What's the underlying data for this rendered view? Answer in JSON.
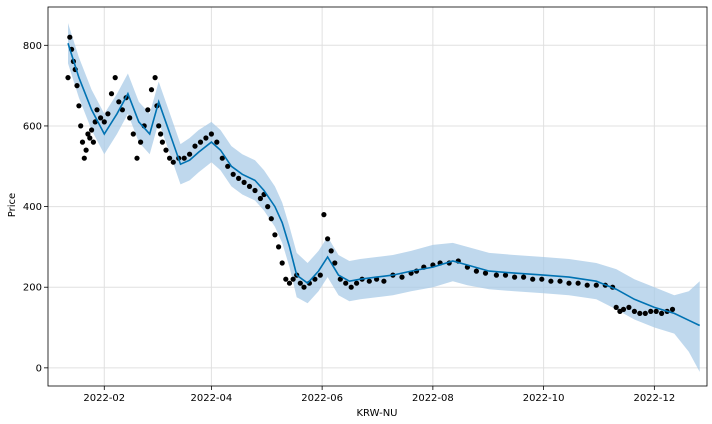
{
  "chart_data": {
    "type": "line",
    "xlabel": "KRW-NU",
    "ylabel": "Price",
    "xlim": [
      "2022-01-01",
      "2022-12-30"
    ],
    "ylim": [
      -45,
      895
    ],
    "grid": true,
    "x_ticks": [
      "2022-02",
      "2022-04",
      "2022-06",
      "2022-08",
      "2022-10",
      "2022-12"
    ],
    "x_tick_dates": [
      "2022-02-01",
      "2022-04-01",
      "2022-06-01",
      "2022-08-01",
      "2022-10-01",
      "2022-12-01"
    ],
    "y_ticks": [
      0,
      200,
      400,
      600,
      800
    ],
    "colors": {
      "observed": "#000000",
      "forecast": "#0072b2",
      "interval": "#a9cbe7"
    },
    "series": [
      {
        "kind": "observed",
        "x": [
          "2022-01-12",
          "2022-01-13",
          "2022-01-14",
          "2022-01-15",
          "2022-01-16",
          "2022-01-17",
          "2022-01-18",
          "2022-01-19",
          "2022-01-20",
          "2022-01-21",
          "2022-01-22",
          "2022-01-23",
          "2022-01-24",
          "2022-01-25",
          "2022-01-26",
          "2022-01-27",
          "2022-01-28",
          "2022-01-30",
          "2022-02-01",
          "2022-02-03",
          "2022-02-05",
          "2022-02-07",
          "2022-02-09",
          "2022-02-11",
          "2022-02-13",
          "2022-02-15",
          "2022-02-17",
          "2022-02-19",
          "2022-02-21",
          "2022-02-23",
          "2022-02-25",
          "2022-02-27",
          "2022-03-01",
          "2022-03-02",
          "2022-03-03",
          "2022-03-04",
          "2022-03-05",
          "2022-03-07",
          "2022-03-09",
          "2022-03-11",
          "2022-03-14",
          "2022-03-17",
          "2022-03-20",
          "2022-03-23",
          "2022-03-26",
          "2022-03-29",
          "2022-04-01",
          "2022-04-04",
          "2022-04-07",
          "2022-04-10",
          "2022-04-13",
          "2022-04-16",
          "2022-04-19",
          "2022-04-22",
          "2022-04-25",
          "2022-04-28",
          "2022-04-30",
          "2022-05-02",
          "2022-05-04",
          "2022-05-06",
          "2022-05-08",
          "2022-05-10",
          "2022-05-12",
          "2022-05-14",
          "2022-05-16",
          "2022-05-18",
          "2022-05-20",
          "2022-05-22",
          "2022-05-25",
          "2022-05-28",
          "2022-05-31",
          "2022-06-02",
          "2022-06-04",
          "2022-06-06",
          "2022-06-08",
          "2022-06-11",
          "2022-06-14",
          "2022-06-17",
          "2022-06-20",
          "2022-06-23",
          "2022-06-27",
          "2022-07-01",
          "2022-07-05",
          "2022-07-10",
          "2022-07-15",
          "2022-07-20",
          "2022-07-23",
          "2022-07-27",
          "2022-08-01",
          "2022-08-05",
          "2022-08-10",
          "2022-08-15",
          "2022-08-20",
          "2022-08-25",
          "2022-08-30",
          "2022-09-05",
          "2022-09-10",
          "2022-09-15",
          "2022-09-20",
          "2022-09-25",
          "2022-09-30",
          "2022-10-05",
          "2022-10-10",
          "2022-10-15",
          "2022-10-20",
          "2022-10-25",
          "2022-10-30",
          "2022-11-04",
          "2022-11-08",
          "2022-11-10",
          "2022-11-12",
          "2022-11-14",
          "2022-11-17",
          "2022-11-20",
          "2022-11-23",
          "2022-11-26",
          "2022-11-29",
          "2022-12-02",
          "2022-12-05",
          "2022-12-08",
          "2022-12-11"
        ],
        "y": [
          720,
          820,
          790,
          760,
          740,
          700,
          650,
          600,
          560,
          520,
          540,
          580,
          570,
          590,
          560,
          610,
          640,
          620,
          610,
          630,
          680,
          720,
          660,
          640,
          670,
          620,
          580,
          520,
          560,
          600,
          640,
          690,
          720,
          650,
          600,
          580,
          560,
          540,
          520,
          510,
          520,
          520,
          530,
          550,
          560,
          570,
          580,
          560,
          520,
          500,
          480,
          470,
          460,
          450,
          440,
          420,
          430,
          400,
          370,
          330,
          300,
          260,
          220,
          210,
          220,
          230,
          210,
          200,
          210,
          220,
          230,
          380,
          320,
          290,
          260,
          220,
          210,
          200,
          210,
          220,
          215,
          220,
          215,
          230,
          225,
          235,
          240,
          250,
          255,
          260,
          260,
          265,
          250,
          240,
          235,
          230,
          230,
          225,
          225,
          220,
          220,
          215,
          215,
          210,
          210,
          205,
          205,
          205,
          200,
          150,
          140,
          145,
          150,
          140,
          135,
          135,
          140,
          140,
          135,
          140,
          145
        ]
      },
      {
        "kind": "forecast",
        "x": [
          "2022-01-12",
          "2022-01-18",
          "2022-01-25",
          "2022-02-01",
          "2022-02-08",
          "2022-02-14",
          "2022-02-20",
          "2022-02-26",
          "2022-03-03",
          "2022-03-10",
          "2022-03-15",
          "2022-03-20",
          "2022-03-25",
          "2022-04-01",
          "2022-04-06",
          "2022-04-12",
          "2022-04-18",
          "2022-04-25",
          "2022-04-30",
          "2022-05-06",
          "2022-05-10",
          "2022-05-14",
          "2022-05-18",
          "2022-05-24",
          "2022-05-30",
          "2022-06-04",
          "2022-06-10",
          "2022-06-16",
          "2022-06-22",
          "2022-07-01",
          "2022-07-10",
          "2022-07-20",
          "2022-08-01",
          "2022-08-12",
          "2022-08-20",
          "2022-09-01",
          "2022-09-15",
          "2022-10-01",
          "2022-10-15",
          "2022-10-30",
          "2022-11-10",
          "2022-11-20",
          "2022-12-01",
          "2022-12-12",
          "2022-12-20",
          "2022-12-26"
        ],
        "y": [
          805,
          720,
          640,
          580,
          630,
          680,
          610,
          580,
          660,
          570,
          505,
          515,
          535,
          560,
          540,
          500,
          480,
          465,
          440,
          400,
          360,
          300,
          230,
          210,
          240,
          275,
          230,
          215,
          220,
          225,
          230,
          240,
          250,
          265,
          255,
          240,
          235,
          230,
          225,
          215,
          195,
          170,
          150,
          135,
          118,
          105
        ]
      }
    ],
    "interval": {
      "x": [
        "2022-01-12",
        "2022-01-18",
        "2022-01-25",
        "2022-02-01",
        "2022-02-08",
        "2022-02-14",
        "2022-02-20",
        "2022-02-26",
        "2022-03-03",
        "2022-03-10",
        "2022-03-15",
        "2022-03-20",
        "2022-03-25",
        "2022-04-01",
        "2022-04-06",
        "2022-04-12",
        "2022-04-18",
        "2022-04-25",
        "2022-04-30",
        "2022-05-06",
        "2022-05-10",
        "2022-05-14",
        "2022-05-18",
        "2022-05-24",
        "2022-05-30",
        "2022-06-04",
        "2022-06-10",
        "2022-06-16",
        "2022-06-22",
        "2022-07-01",
        "2022-07-10",
        "2022-07-20",
        "2022-08-01",
        "2022-08-12",
        "2022-08-20",
        "2022-09-01",
        "2022-09-15",
        "2022-10-01",
        "2022-10-15",
        "2022-10-30",
        "2022-11-10",
        "2022-11-20",
        "2022-12-01",
        "2022-12-12",
        "2022-12-20",
        "2022-12-26"
      ],
      "upper": [
        855,
        770,
        690,
        630,
        680,
        730,
        660,
        630,
        710,
        620,
        555,
        570,
        590,
        610,
        590,
        550,
        530,
        515,
        490,
        450,
        410,
        350,
        285,
        260,
        290,
        325,
        280,
        265,
        270,
        275,
        280,
        290,
        305,
        310,
        300,
        285,
        280,
        275,
        270,
        260,
        245,
        220,
        200,
        180,
        190,
        215
      ],
      "lower": [
        755,
        670,
        590,
        530,
        580,
        630,
        560,
        530,
        610,
        520,
        455,
        465,
        485,
        510,
        490,
        450,
        430,
        415,
        390,
        350,
        310,
        250,
        175,
        160,
        190,
        225,
        180,
        165,
        170,
        175,
        180,
        190,
        200,
        215,
        205,
        195,
        190,
        185,
        180,
        170,
        145,
        120,
        100,
        85,
        40,
        -10
      ]
    }
  }
}
